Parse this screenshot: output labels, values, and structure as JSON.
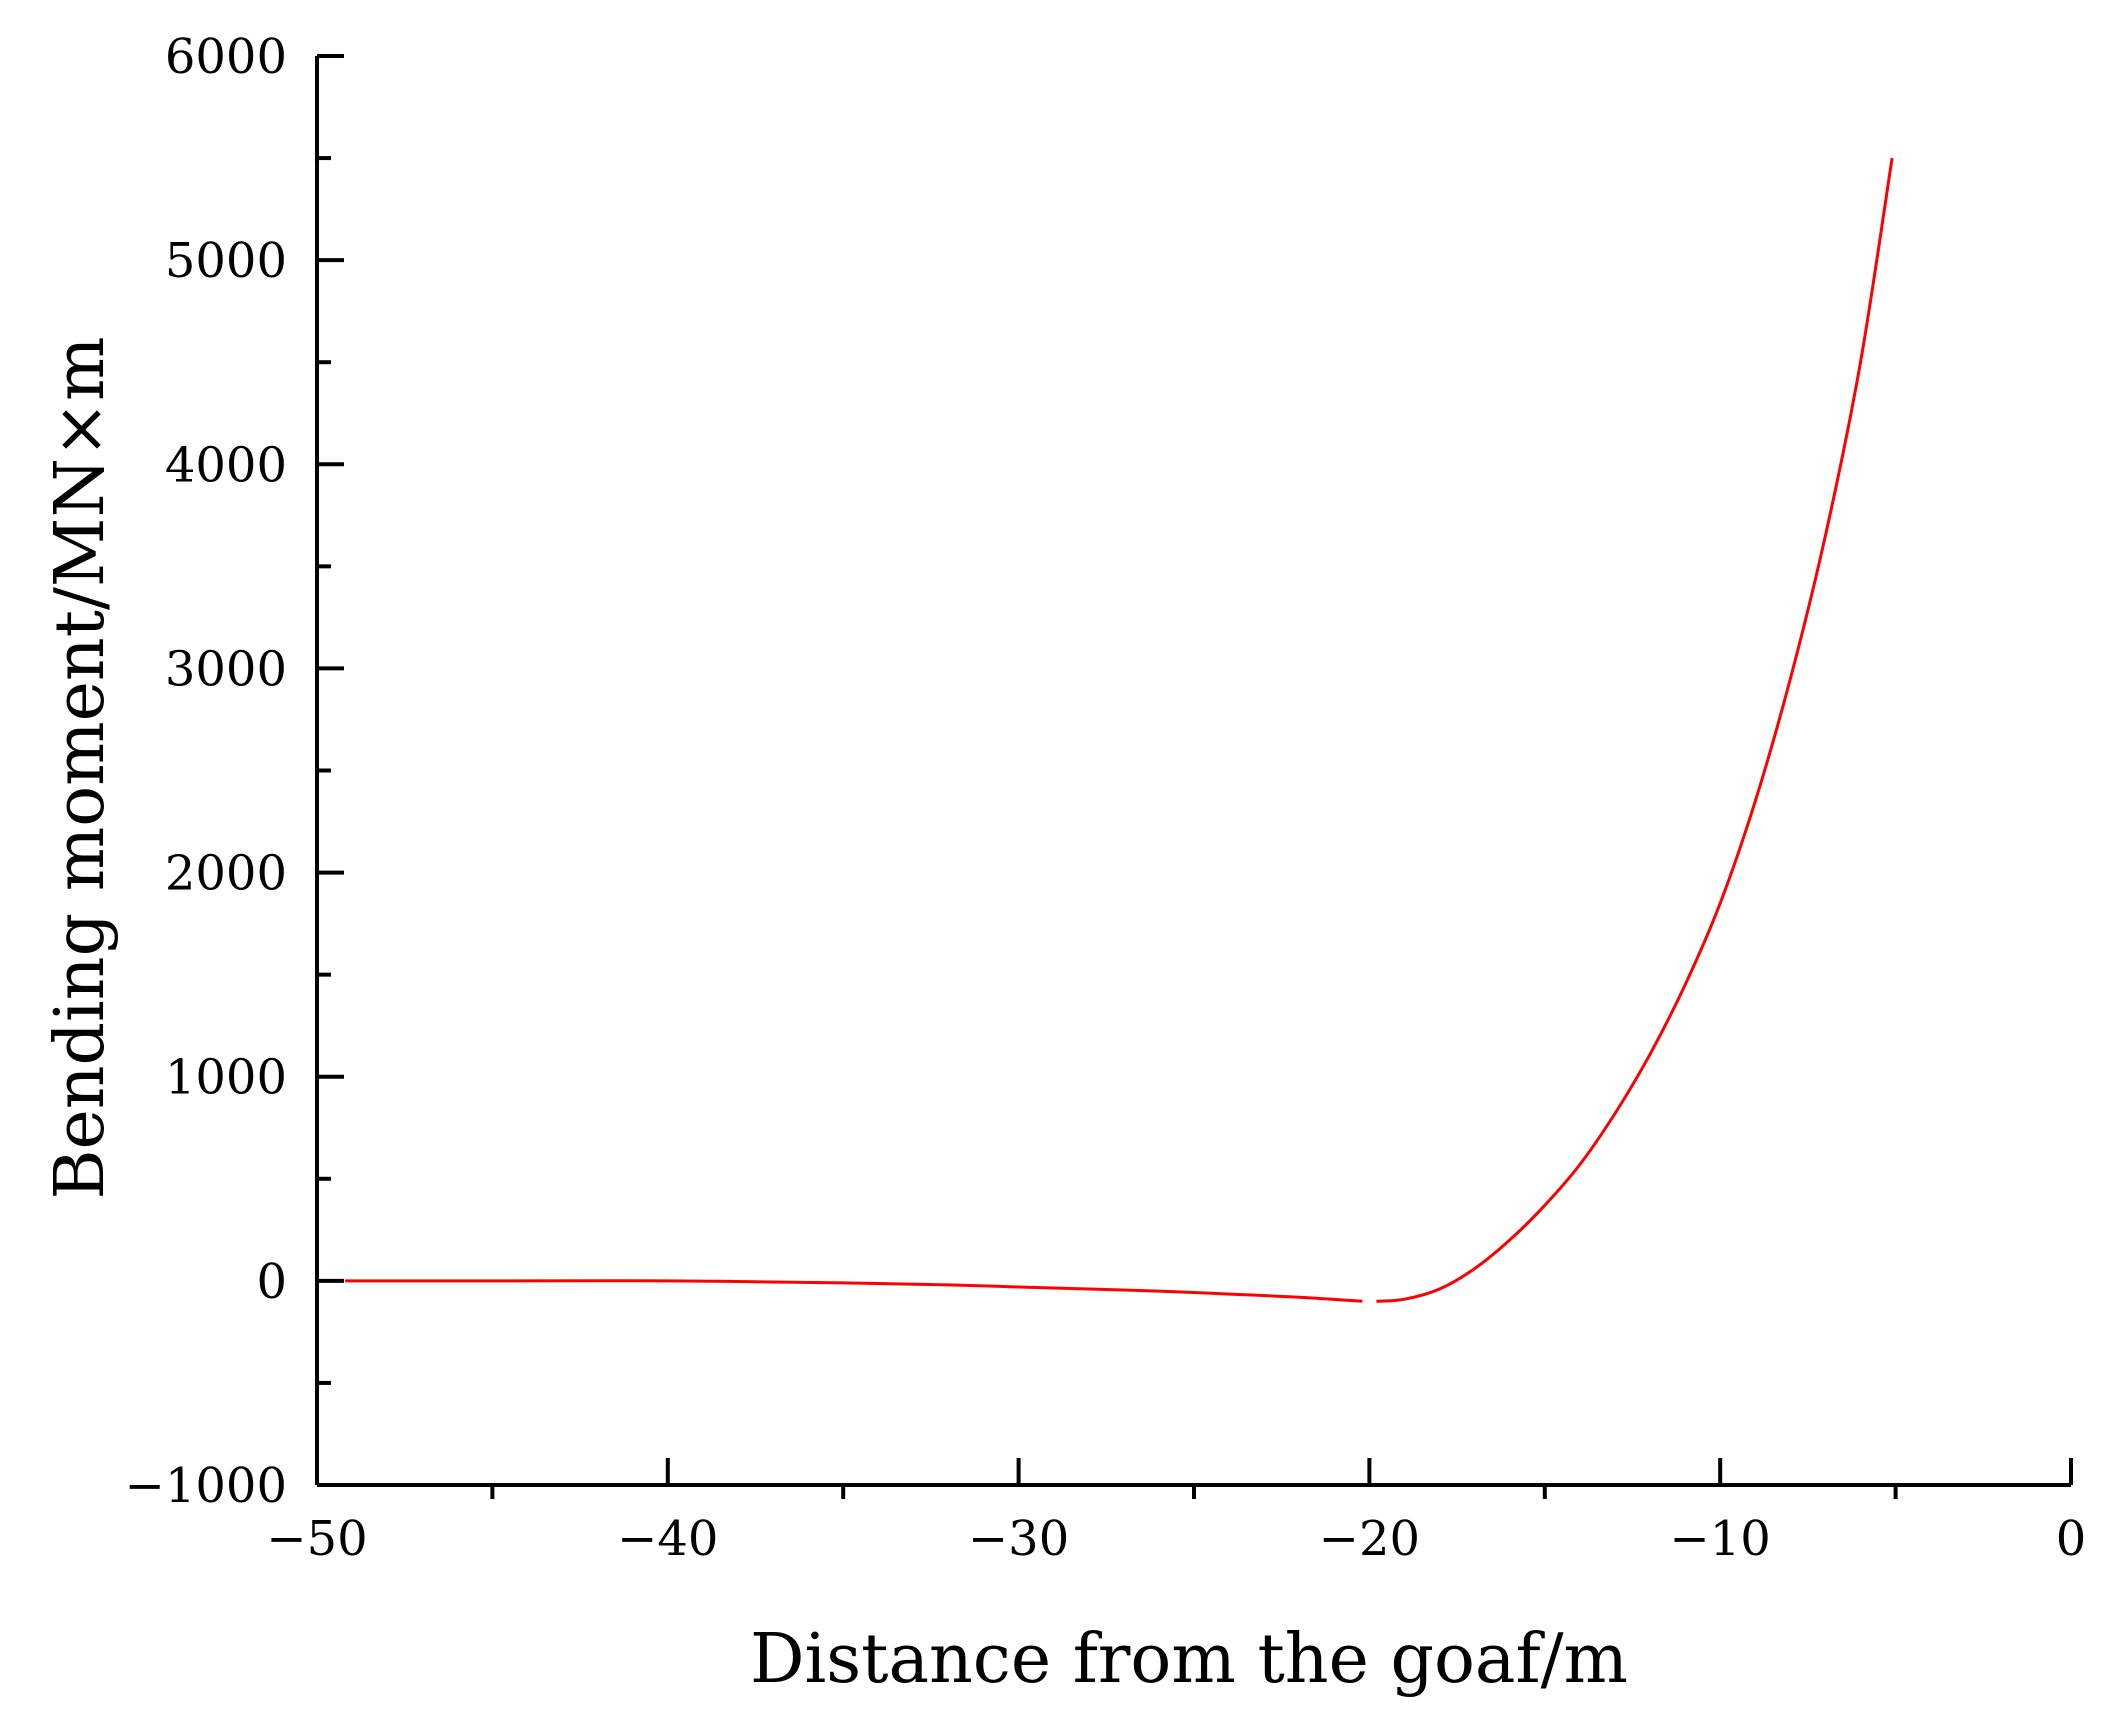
{
  "chart_data": {
    "type": "line",
    "title": "",
    "xlabel": "Distance from the goaf/m",
    "ylabel": "Bending moment/MN×m",
    "xlim": [
      -50,
      0
    ],
    "ylim": [
      -1000,
      6000
    ],
    "x_ticks": [
      -50,
      -40,
      -30,
      -20,
      -10,
      0
    ],
    "x_tick_labels": [
      "−50",
      "−40",
      "−30",
      "−20",
      "−10",
      "0"
    ],
    "x_minor_ticks": [
      -45,
      -35,
      -25,
      -15,
      -5
    ],
    "y_ticks": [
      -1000,
      0,
      1000,
      2000,
      3000,
      4000,
      5000,
      6000
    ],
    "y_tick_labels": [
      "−1000",
      "0",
      "1000",
      "2000",
      "3000",
      "4000",
      "5000",
      "6000"
    ],
    "y_minor_ticks": [
      -500,
      500,
      1500,
      2500,
      3500,
      4500,
      5500
    ],
    "grid": false,
    "series": [
      {
        "color": "#ff0000",
        "segments": [
          {
            "x": [
              -49.2,
              -45,
              -40,
              -35,
              -32,
              -30,
              -28,
              -26,
              -24,
              -22,
              -20.2
            ],
            "y": [
              0,
              0,
              0,
              -10,
              -20,
              -30,
              -40,
              -50,
              -65,
              -80,
              -100
            ]
          },
          {
            "x": [
              -19.8,
              -19,
              -18,
              -17,
              -16,
              -15,
              -14,
              -13,
              -12,
              -11,
              -10,
              -9,
              -8,
              -7,
              -6,
              -5.1
            ],
            "y": [
              -100,
              -90,
              -40,
              60,
              200,
              370,
              570,
              820,
              1110,
              1450,
              1850,
              2350,
              2950,
              3650,
              4500,
              5500
            ]
          }
        ]
      }
    ]
  }
}
